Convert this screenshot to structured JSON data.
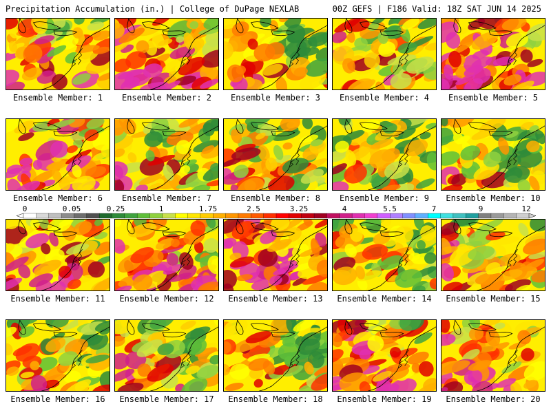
{
  "header": {
    "left_title": "Precipitation Accumulation (in.) | College of DuPage NEXLAB",
    "right_title": "00Z GEFS | F186 Valid: 18Z SAT JUN 14 2025"
  },
  "panels": [
    {
      "label": "Ensemble Member: 1",
      "intensity": 0.55
    },
    {
      "label": "Ensemble Member: 2",
      "intensity": 0.7
    },
    {
      "label": "Ensemble Member: 3",
      "intensity": 0.45
    },
    {
      "label": "Ensemble Member: 4",
      "intensity": 0.5
    },
    {
      "label": "Ensemble Member: 5",
      "intensity": 0.75
    },
    {
      "label": "Ensemble Member: 6",
      "intensity": 0.7
    },
    {
      "label": "Ensemble Member: 7",
      "intensity": 0.45
    },
    {
      "label": "Ensemble Member: 8",
      "intensity": 0.4
    },
    {
      "label": "Ensemble Member: 9",
      "intensity": 0.3
    },
    {
      "label": "Ensemble Member: 10",
      "intensity": 0.35
    },
    {
      "label": "Ensemble Member: 11",
      "intensity": 0.6
    },
    {
      "label": "Ensemble Member: 12",
      "intensity": 0.6
    },
    {
      "label": "Ensemble Member: 13",
      "intensity": 0.75
    },
    {
      "label": "Ensemble Member: 14",
      "intensity": 0.35
    },
    {
      "label": "Ensemble Member: 15",
      "intensity": 0.5
    },
    {
      "label": "Ensemble Member: 16",
      "intensity": 0.4
    },
    {
      "label": "Ensemble Member: 17",
      "intensity": 0.45
    },
    {
      "label": "Ensemble Member: 18",
      "intensity": 0.4
    },
    {
      "label": "Ensemble Member: 19",
      "intensity": 0.65
    },
    {
      "label": "Ensemble Member: 20",
      "intensity": 0.6
    }
  ],
  "colorbar": {
    "labels": [
      "0",
      "0.05",
      "0.25",
      "1",
      "1.75",
      "2.5",
      "3.25",
      "4",
      "5.5",
      "7",
      "9",
      "12"
    ],
    "colors": [
      "#ffffff",
      "#d9d9d9",
      "#bfbfbf",
      "#8c8c8c",
      "#6e6e6e",
      "#505050",
      "#1f6b2e",
      "#2e8b3a",
      "#3fa33f",
      "#5fbf3a",
      "#8fd13f",
      "#c8e04a",
      "#ffff00",
      "#ffe600",
      "#ffcc00",
      "#ffb000",
      "#ff9600",
      "#ff7a00",
      "#ff5a00",
      "#ff3000",
      "#ff0000",
      "#e00000",
      "#c00010",
      "#a00020",
      "#c01060",
      "#d0208a",
      "#e030b0",
      "#f040d0",
      "#d060ff",
      "#b080ff",
      "#8090ff",
      "#60b0ff",
      "#00ffff",
      "#40e0e0",
      "#40c0c0",
      "#20a0a0",
      "#808080",
      "#9a9a9a",
      "#b4b4b4",
      "#cecece"
    ]
  }
}
